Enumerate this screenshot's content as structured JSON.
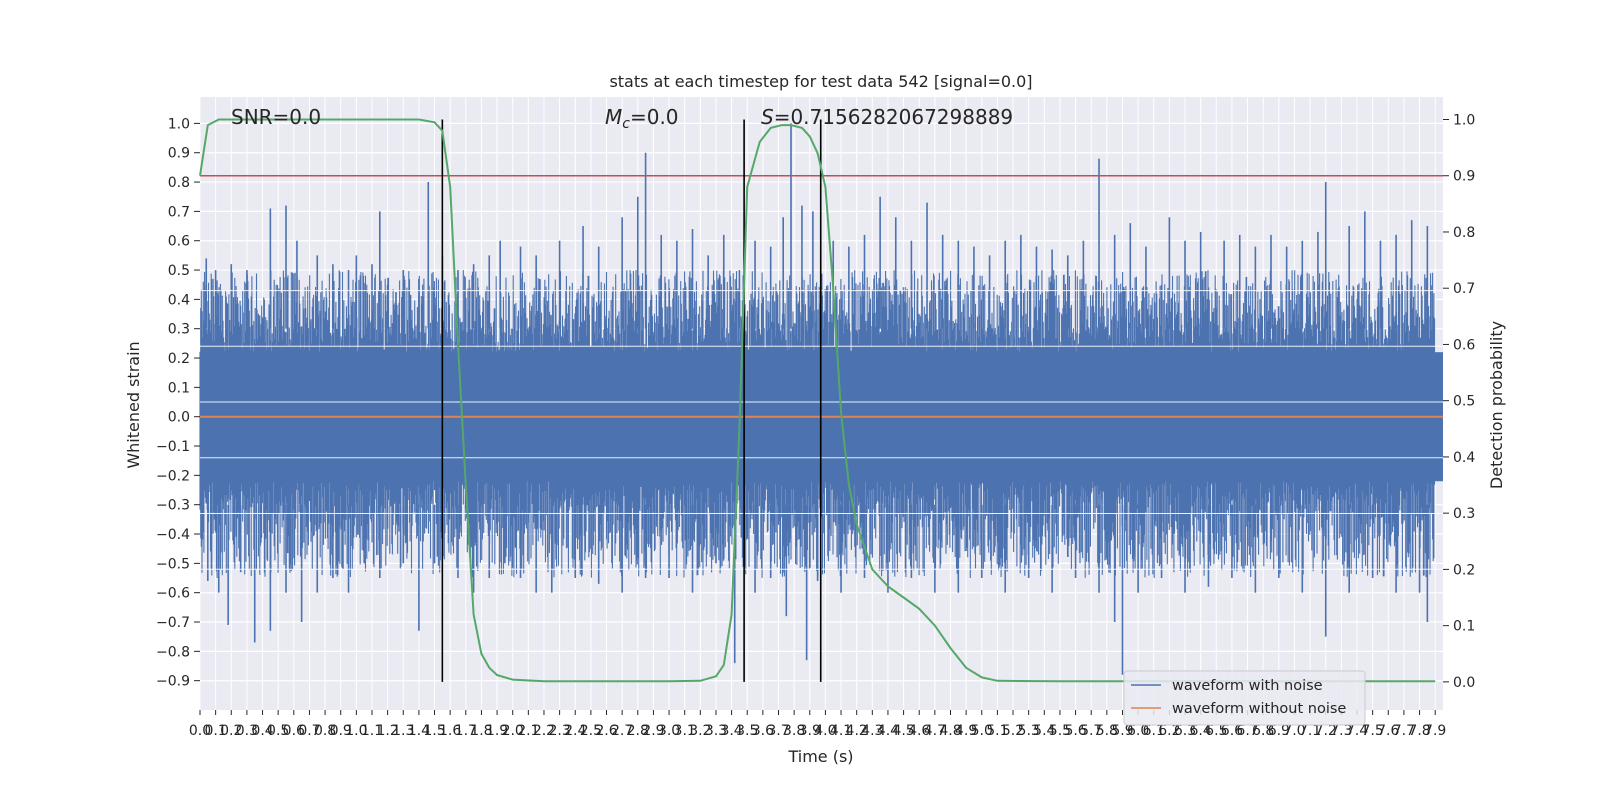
{
  "chart_data": {
    "type": "line",
    "title": "stats at each timestep for test data 542 [signal=0.0]",
    "xlabel": "Time (s)",
    "ylabel_left": "Whitened strain",
    "ylabel_right": "Detection probability",
    "xlim": [
      0,
      7.95
    ],
    "ylim_left": [
      -1.0,
      1.09
    ],
    "ylim_right": [
      -0.05,
      1.04
    ],
    "yticks_left": [
      "1.0",
      "0.9",
      "0.8",
      "0.7",
      "0.6",
      "0.5",
      "0.4",
      "0.3",
      "0.2",
      "0.1",
      "0.0",
      "-0.1",
      "-0.2",
      "-0.3",
      "-0.4",
      "-0.5",
      "-0.6",
      "-0.7",
      "-0.8",
      "-0.9"
    ],
    "yticks_right": [
      "1.0",
      "0.9",
      "0.8",
      "0.7",
      "0.6",
      "0.5",
      "0.4",
      "0.3",
      "0.2",
      "0.1",
      "0.0"
    ],
    "xticks": [
      "0.0",
      "0.1",
      "0.2",
      "0.3",
      "0.4",
      "0.5",
      "0.6",
      "0.7",
      "0.8",
      "0.9",
      "1.0",
      "1.1",
      "1.2",
      "1.3",
      "1.4",
      "1.5",
      "1.6",
      "1.7",
      "1.8",
      "1.9",
      "2.0",
      "2.1",
      "2.2",
      "2.3",
      "2.4",
      "2.5",
      "2.6",
      "2.7",
      "2.8",
      "2.9",
      "3.0",
      "3.1",
      "3.2",
      "3.3",
      "3.4",
      "3.5",
      "3.6",
      "3.7",
      "3.8",
      "3.9",
      "4.0",
      "4.1",
      "4.2",
      "4.3",
      "4.4",
      "4.5",
      "4.6",
      "4.7",
      "4.8",
      "4.9",
      "5.0",
      "5.1",
      "5.2",
      "5.3",
      "5.4",
      "5.5",
      "5.6",
      "5.7",
      "5.8",
      "5.9",
      "6.0",
      "6.1",
      "6.2",
      "6.3",
      "6.4",
      "6.5",
      "6.6",
      "6.7",
      "6.8",
      "6.9",
      "7.0",
      "7.1",
      "7.2",
      "7.3",
      "7.4",
      "7.5",
      "7.6",
      "7.7",
      "7.8",
      "7.9"
    ],
    "annotations": {
      "snr": "SNR=0.0",
      "mc_symbol": "M",
      "mc_subscript": "c",
      "mc_value": "=0.0",
      "s_symbol": "S",
      "s_value": "=0.7156282067298889"
    },
    "threshold": {
      "y_right": 0.9,
      "color": "#c44e52"
    },
    "vertical_markers": [
      1.55,
      3.48,
      3.97
    ],
    "noise_band": {
      "envelope_low": 0.22,
      "envelope_high": 0.45,
      "core": 0.05
    },
    "spikes_positive": [
      [
        0.04,
        0.54
      ],
      [
        0.1,
        0.5
      ],
      [
        0.2,
        0.52
      ],
      [
        0.3,
        0.5
      ],
      [
        0.45,
        0.71
      ],
      [
        0.55,
        0.72
      ],
      [
        0.62,
        0.6
      ],
      [
        0.75,
        0.55
      ],
      [
        0.85,
        0.52
      ],
      [
        0.95,
        0.5
      ],
      [
        1.0,
        0.55
      ],
      [
        1.1,
        0.52
      ],
      [
        1.15,
        0.7
      ],
      [
        1.2,
        0.45
      ],
      [
        1.3,
        0.5
      ],
      [
        1.4,
        0.47
      ],
      [
        1.46,
        0.8
      ],
      [
        1.55,
        0.55
      ],
      [
        1.65,
        0.5
      ],
      [
        1.75,
        0.52
      ],
      [
        1.85,
        0.55
      ],
      [
        1.92,
        0.6
      ],
      [
        2.05,
        0.58
      ],
      [
        2.15,
        0.55
      ],
      [
        2.3,
        0.6
      ],
      [
        2.45,
        0.65
      ],
      [
        2.55,
        0.58
      ],
      [
        2.7,
        0.68
      ],
      [
        2.8,
        0.75
      ],
      [
        2.85,
        0.9
      ],
      [
        2.95,
        0.62
      ],
      [
        3.05,
        0.6
      ],
      [
        3.15,
        0.64
      ],
      [
        3.25,
        0.55
      ],
      [
        3.35,
        0.62
      ],
      [
        3.45,
        0.5
      ],
      [
        3.55,
        0.6
      ],
      [
        3.65,
        0.58
      ],
      [
        3.73,
        0.68
      ],
      [
        3.78,
        1.0
      ],
      [
        3.85,
        0.72
      ],
      [
        3.92,
        0.7
      ],
      [
        4.05,
        0.6
      ],
      [
        4.15,
        0.58
      ],
      [
        4.25,
        0.62
      ],
      [
        4.35,
        0.75
      ],
      [
        4.45,
        0.68
      ],
      [
        4.55,
        0.6
      ],
      [
        4.65,
        0.73
      ],
      [
        4.75,
        0.62
      ],
      [
        4.85,
        0.6
      ],
      [
        4.95,
        0.58
      ],
      [
        5.05,
        0.55
      ],
      [
        5.15,
        0.6
      ],
      [
        5.25,
        0.62
      ],
      [
        5.35,
        0.58
      ],
      [
        5.45,
        0.57
      ],
      [
        5.55,
        0.55
      ],
      [
        5.65,
        0.6
      ],
      [
        5.75,
        0.88
      ],
      [
        5.85,
        0.62
      ],
      [
        5.95,
        0.66
      ],
      [
        6.05,
        0.58
      ],
      [
        6.2,
        0.68
      ],
      [
        6.3,
        0.6
      ],
      [
        6.4,
        0.63
      ],
      [
        6.55,
        0.6
      ],
      [
        6.65,
        0.62
      ],
      [
        6.75,
        0.58
      ],
      [
        6.85,
        0.62
      ],
      [
        6.95,
        0.58
      ],
      [
        7.05,
        0.6
      ],
      [
        7.15,
        0.63
      ],
      [
        7.2,
        0.8
      ],
      [
        7.35,
        0.65
      ],
      [
        7.45,
        0.7
      ],
      [
        7.55,
        0.6
      ],
      [
        7.65,
        0.62
      ],
      [
        7.75,
        0.67
      ],
      [
        7.85,
        0.65
      ]
    ],
    "spikes_negative": [
      [
        0.05,
        -0.56
      ],
      [
        0.12,
        -0.6
      ],
      [
        0.18,
        -0.71
      ],
      [
        0.26,
        -0.53
      ],
      [
        0.35,
        -0.77
      ],
      [
        0.45,
        -0.73
      ],
      [
        0.55,
        -0.6
      ],
      [
        0.65,
        -0.7
      ],
      [
        0.75,
        -0.6
      ],
      [
        0.85,
        -0.55
      ],
      [
        0.95,
        -0.6
      ],
      [
        1.05,
        -0.5
      ],
      [
        1.15,
        -0.55
      ],
      [
        1.3,
        -0.5
      ],
      [
        1.4,
        -0.73
      ],
      [
        1.5,
        -0.5
      ],
      [
        1.65,
        -0.55
      ],
      [
        1.75,
        -0.6
      ],
      [
        1.85,
        -0.55
      ],
      [
        1.95,
        -0.5
      ],
      [
        2.05,
        -0.55
      ],
      [
        2.15,
        -0.6
      ],
      [
        2.25,
        -0.6
      ],
      [
        2.4,
        -0.55
      ],
      [
        2.55,
        -0.57
      ],
      [
        2.7,
        -0.6
      ],
      [
        2.85,
        -0.55
      ],
      [
        3.0,
        -0.55
      ],
      [
        3.15,
        -0.6
      ],
      [
        3.3,
        -0.5
      ],
      [
        3.42,
        -0.84
      ],
      [
        3.55,
        -0.6
      ],
      [
        3.65,
        -0.55
      ],
      [
        3.75,
        -0.68
      ],
      [
        3.88,
        -0.83
      ],
      [
        3.95,
        -0.56
      ],
      [
        4.1,
        -0.6
      ],
      [
        4.25,
        -0.55
      ],
      [
        4.4,
        -0.6
      ],
      [
        4.55,
        -0.55
      ],
      [
        4.7,
        -0.6
      ],
      [
        4.85,
        -0.6
      ],
      [
        5.0,
        -0.55
      ],
      [
        5.15,
        -0.6
      ],
      [
        5.3,
        -0.55
      ],
      [
        5.45,
        -0.6
      ],
      [
        5.6,
        -0.55
      ],
      [
        5.75,
        -0.6
      ],
      [
        5.85,
        -0.7
      ],
      [
        5.9,
        -0.88
      ],
      [
        6.0,
        -0.6
      ],
      [
        6.15,
        -0.55
      ],
      [
        6.3,
        -0.6
      ],
      [
        6.45,
        -0.58
      ],
      [
        6.6,
        -0.55
      ],
      [
        6.75,
        -0.6
      ],
      [
        6.9,
        -0.55
      ],
      [
        7.05,
        -0.6
      ],
      [
        7.2,
        -0.75
      ],
      [
        7.35,
        -0.6
      ],
      [
        7.5,
        -0.55
      ],
      [
        7.65,
        -0.6
      ],
      [
        7.8,
        -0.6
      ],
      [
        7.85,
        -0.7
      ]
    ],
    "series": [
      {
        "name": "waveform with noise",
        "color": "#4c72b0"
      },
      {
        "name": "waveform without noise",
        "color": "#dd8452",
        "value": 0.0
      },
      {
        "name": "detection probability",
        "color": "#55a868",
        "points": [
          [
            0.0,
            0.9
          ],
          [
            0.05,
            0.99
          ],
          [
            0.12,
            1.0
          ],
          [
            0.3,
            1.0
          ],
          [
            1.0,
            1.0
          ],
          [
            1.4,
            1.0
          ],
          [
            1.5,
            0.995
          ],
          [
            1.55,
            0.98
          ],
          [
            1.6,
            0.88
          ],
          [
            1.65,
            0.6
          ],
          [
            1.7,
            0.35
          ],
          [
            1.75,
            0.12
          ],
          [
            1.8,
            0.05
          ],
          [
            1.85,
            0.025
          ],
          [
            1.9,
            0.012
          ],
          [
            2.0,
            0.004
          ],
          [
            2.2,
            0.001
          ],
          [
            2.5,
            0.001
          ],
          [
            3.0,
            0.001
          ],
          [
            3.2,
            0.002
          ],
          [
            3.3,
            0.01
          ],
          [
            3.35,
            0.03
          ],
          [
            3.4,
            0.12
          ],
          [
            3.45,
            0.45
          ],
          [
            3.5,
            0.88
          ],
          [
            3.58,
            0.96
          ],
          [
            3.65,
            0.985
          ],
          [
            3.72,
            0.99
          ],
          [
            3.78,
            0.99
          ],
          [
            3.85,
            0.985
          ],
          [
            3.9,
            0.97
          ],
          [
            3.95,
            0.94
          ],
          [
            4.0,
            0.88
          ],
          [
            4.05,
            0.7
          ],
          [
            4.1,
            0.48
          ],
          [
            4.15,
            0.35
          ],
          [
            4.2,
            0.28
          ],
          [
            4.3,
            0.2
          ],
          [
            4.4,
            0.17
          ],
          [
            4.5,
            0.15
          ],
          [
            4.6,
            0.13
          ],
          [
            4.7,
            0.1
          ],
          [
            4.8,
            0.06
          ],
          [
            4.9,
            0.025
          ],
          [
            5.0,
            0.008
          ],
          [
            5.1,
            0.002
          ],
          [
            5.5,
            0.001
          ],
          [
            6.0,
            0.001
          ],
          [
            7.0,
            0.001
          ],
          [
            7.9,
            0.001
          ]
        ]
      }
    ],
    "legend_position": "bottom-right"
  }
}
